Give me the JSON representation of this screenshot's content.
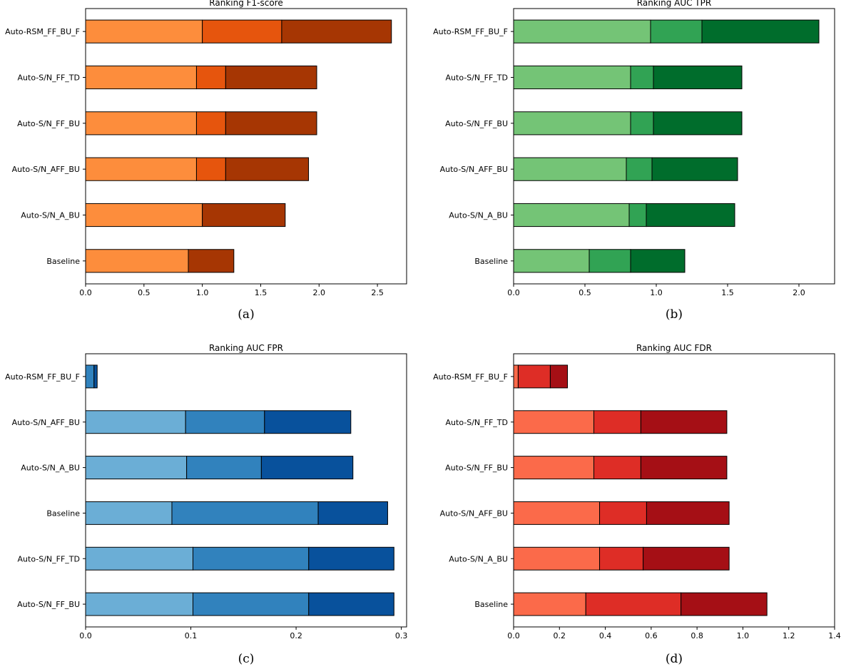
{
  "chart_data": [
    {
      "type": "bar",
      "orientation": "horizontal",
      "stacked": true,
      "title": "Ranking F1-score",
      "caption": "(a)",
      "categories": [
        "Auto-RSM_FF_BU_F",
        "Auto-S/N_FF_TD",
        "Auto-S/N_FF_BU",
        "Auto-S/N_AFF_BU",
        "Auto-S/N_A_BU",
        "Baseline"
      ],
      "series": [
        {
          "name": "segment 1",
          "color": "#fd8d3c",
          "values": [
            1.0,
            0.95,
            0.95,
            0.95,
            1.0,
            0.88
          ]
        },
        {
          "name": "segment 2",
          "color": "#e6550d",
          "values": [
            0.68,
            0.25,
            0.25,
            0.25,
            0.0,
            0.0
          ]
        },
        {
          "name": "segment 3",
          "color": "#a63603",
          "values": [
            0.94,
            0.78,
            0.78,
            0.71,
            0.71,
            0.39
          ]
        }
      ],
      "xlim": [
        0.0,
        2.75
      ],
      "xticks": [
        "0.0",
        "0.5",
        "1.0",
        "1.5",
        "2.0",
        "2.5"
      ],
      "xtick_values": [
        0.0,
        0.5,
        1.0,
        1.5,
        2.0,
        2.5
      ]
    },
    {
      "type": "bar",
      "orientation": "horizontal",
      "stacked": true,
      "title": "Ranking AUC TPR",
      "caption": "(b)",
      "categories": [
        "Auto-RSM_FF_BU_F",
        "Auto-S/N_FF_TD",
        "Auto-S/N_FF_BU",
        "Auto-S/N_AFF_BU",
        "Auto-S/N_A_BU",
        "Baseline"
      ],
      "series": [
        {
          "name": "segment 1",
          "color": "#74c476",
          "values": [
            0.96,
            0.82,
            0.82,
            0.79,
            0.81,
            0.53
          ]
        },
        {
          "name": "segment 2",
          "color": "#31a354",
          "values": [
            0.36,
            0.16,
            0.16,
            0.18,
            0.12,
            0.29
          ]
        },
        {
          "name": "segment 3",
          "color": "#006d2c",
          "values": [
            0.82,
            0.62,
            0.62,
            0.6,
            0.62,
            0.38
          ]
        }
      ],
      "xlim": [
        0.0,
        2.25
      ],
      "xticks": [
        "0.0",
        "0.5",
        "1.0",
        "1.5",
        "2.0"
      ],
      "xtick_values": [
        0.0,
        0.5,
        1.0,
        1.5,
        2.0
      ]
    },
    {
      "type": "bar",
      "orientation": "horizontal",
      "stacked": true,
      "title": "Ranking AUC FPR",
      "caption": "(c)",
      "categories": [
        "Auto-RSM_FF_BU_F",
        "Auto-S/N_AFF_BU",
        "Auto-S/N_A_BU",
        "Baseline",
        "Auto-S/N_FF_TD",
        "Auto-S/N_FF_BU"
      ],
      "series": [
        {
          "name": "segment 1",
          "color": "#6baed6",
          "values": [
            0.0,
            0.095,
            0.096,
            0.082,
            0.102,
            0.102
          ]
        },
        {
          "name": "segment 2",
          "color": "#3182bd",
          "values": [
            0.008,
            0.075,
            0.071,
            0.139,
            0.11,
            0.11
          ]
        },
        {
          "name": "segment 3",
          "color": "#08519c",
          "values": [
            0.003,
            0.082,
            0.087,
            0.066,
            0.081,
            0.081
          ]
        }
      ],
      "xlim": [
        0.0,
        0.305
      ],
      "xticks": [
        "0.0",
        "0.1",
        "0.2",
        "0.3"
      ],
      "xtick_values": [
        0.0,
        0.1,
        0.2,
        0.3
      ]
    },
    {
      "type": "bar",
      "orientation": "horizontal",
      "stacked": true,
      "title": "Ranking AUC FDR",
      "caption": "(d)",
      "categories": [
        "Auto-RSM_FF_BU_F",
        "Auto-S/N_FF_TD",
        "Auto-S/N_FF_BU",
        "Auto-S/N_AFF_BU",
        "Auto-S/N_A_BU",
        "Baseline"
      ],
      "series": [
        {
          "name": "segment 1",
          "color": "#fb6a4a",
          "values": [
            0.02,
            0.35,
            0.35,
            0.375,
            0.375,
            0.315
          ]
        },
        {
          "name": "segment 2",
          "color": "#de2d26",
          "values": [
            0.14,
            0.205,
            0.205,
            0.205,
            0.19,
            0.415
          ]
        },
        {
          "name": "segment 3",
          "color": "#a50f15",
          "values": [
            0.075,
            0.375,
            0.375,
            0.36,
            0.375,
            0.375
          ]
        }
      ],
      "xlim": [
        0.0,
        1.4
      ],
      "xticks": [
        "0.0",
        "0.2",
        "0.4",
        "0.6",
        "0.8",
        "1.0",
        "1.2",
        "1.4"
      ],
      "xtick_values": [
        0.0,
        0.2,
        0.4,
        0.6,
        0.8,
        1.0,
        1.2,
        1.4
      ]
    }
  ]
}
